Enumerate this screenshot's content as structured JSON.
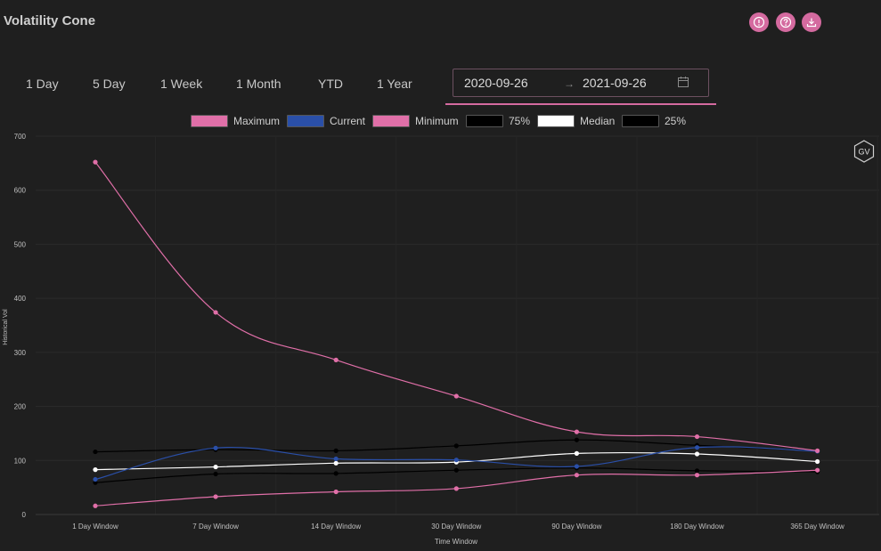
{
  "header": {
    "title": "Volatility Cone",
    "icons": [
      "info-icon",
      "help-icon",
      "download-icon"
    ],
    "accent_color": "#d46a9f"
  },
  "range_tabs": [
    {
      "label": "1 Day"
    },
    {
      "label": "5 Day"
    },
    {
      "label": "1 Week"
    },
    {
      "label": "1 Month"
    },
    {
      "label": "YTD"
    },
    {
      "label": "1 Year"
    }
  ],
  "date_range": {
    "start": "2020-09-26",
    "separator": "→",
    "end": "2021-09-26"
  },
  "badge": "GV",
  "chart_data": {
    "type": "line",
    "title": "",
    "xlabel": "Time Window",
    "ylabel": "Historical Vol",
    "ylim": [
      0,
      700
    ],
    "yticks": [
      0,
      100,
      200,
      300,
      400,
      500,
      600,
      700
    ],
    "grid": true,
    "legend_position": "top",
    "categories": [
      "1 Day Window",
      "7 Day Window",
      "14 Day Window",
      "30 Day Window",
      "90 Day Window",
      "180 Day Window",
      "365 Day Window"
    ],
    "series": [
      {
        "name": "Maximum",
        "color": "#e06fa8",
        "values": [
          652,
          374,
          286,
          219,
          153,
          144,
          118
        ]
      },
      {
        "name": "Current",
        "color": "#2a4fa8",
        "values": [
          65,
          123,
          103,
          101,
          89,
          124,
          117
        ]
      },
      {
        "name": "Minimum",
        "color": "#e06fa8",
        "values": [
          16,
          33,
          42,
          48,
          73,
          73,
          82
        ]
      },
      {
        "name": "75%",
        "color": "#000000",
        "values": [
          116,
          120,
          118,
          127,
          138,
          128,
          118
        ]
      },
      {
        "name": "Median",
        "color": "#ffffff",
        "values": [
          83,
          88,
          95,
          97,
          113,
          112,
          98
        ]
      },
      {
        "name": "25%",
        "color": "#000000",
        "values": [
          59,
          75,
          76,
          82,
          86,
          81,
          79
        ]
      }
    ]
  }
}
